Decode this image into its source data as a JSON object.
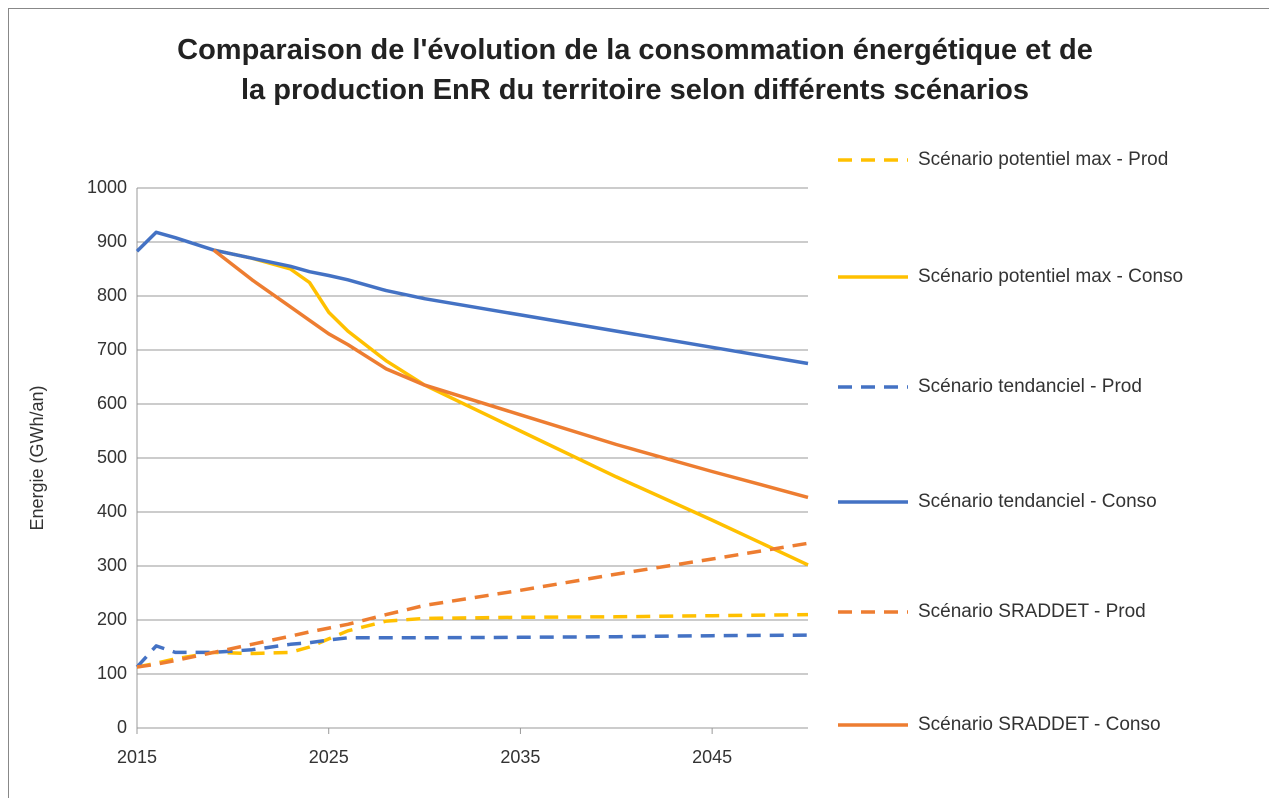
{
  "chart_data": {
    "type": "line",
    "title": "Comparaison de l'évolution de la consommation énergétique et de la production EnR du territoire selon différents scénarios",
    "y_label": "Energie (GWh/an)",
    "x": [
      2015,
      2016,
      2017,
      2019,
      2021,
      2023,
      2024,
      2025,
      2026,
      2028,
      2030,
      2035,
      2040,
      2045,
      2050
    ],
    "xlim": [
      2015,
      2050
    ],
    "xticks": [
      2015,
      2025,
      2035,
      2045
    ],
    "ylim": [
      0,
      1000
    ],
    "yticks": [
      0,
      100,
      200,
      300,
      400,
      500,
      600,
      700,
      800,
      900,
      1000
    ],
    "grid": true,
    "legend": "right",
    "series": [
      {
        "name": "Scénario potentiel max - Prod",
        "color": "#ffc000",
        "dashed": true,
        "values": [
          113,
          120,
          128,
          140,
          138,
          140,
          150,
          165,
          180,
          198,
          203,
          205,
          206,
          208,
          210
        ]
      },
      {
        "name": "Scénario potentiel max - Conso",
        "color": "#ffc000",
        "dashed": false,
        "values": [
          null,
          null,
          null,
          885,
          870,
          850,
          825,
          770,
          735,
          680,
          635,
          550,
          465,
          385,
          302
        ]
      },
      {
        "name": "Scénario tendanciel - Prod",
        "color": "#4472c4",
        "dashed": true,
        "values": [
          113,
          152,
          140,
          140,
          145,
          155,
          158,
          163,
          167,
          167,
          167,
          168,
          169,
          171,
          172
        ]
      },
      {
        "name": "Scénario tendanciel - Conso",
        "color": "#4472c4",
        "dashed": false,
        "values": [
          883,
          918,
          908,
          885,
          870,
          855,
          845,
          838,
          830,
          810,
          795,
          765,
          735,
          705,
          675
        ]
      },
      {
        "name": "Scénario SRADDET - Prod",
        "color": "#ed7d31",
        "dashed": true,
        "values": [
          113,
          118,
          125,
          140,
          155,
          170,
          178,
          185,
          192,
          210,
          227,
          255,
          285,
          313,
          342
        ]
      },
      {
        "name": "Scénario SRADDET - Conso",
        "color": "#ed7d31",
        "dashed": false,
        "values": [
          null,
          null,
          null,
          885,
          830,
          780,
          755,
          730,
          710,
          665,
          635,
          580,
          525,
          475,
          427
        ]
      }
    ]
  }
}
